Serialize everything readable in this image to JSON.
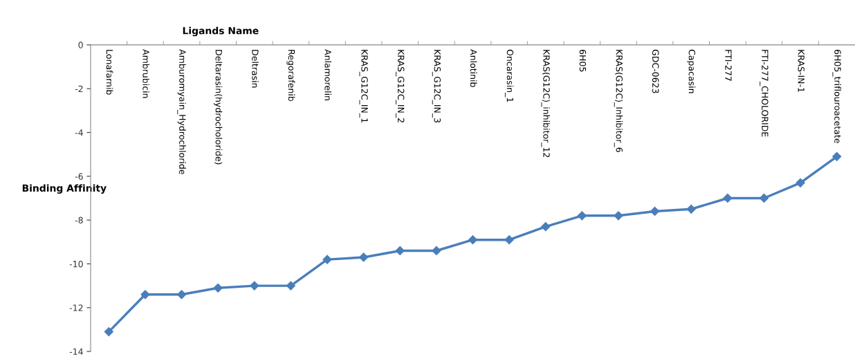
{
  "chart_data": {
    "type": "line",
    "xlabel": "Ligands Name",
    "ylabel": "Binding Affinity",
    "categories": [
      "Lonafarnib",
      "Ambrubicin",
      "Amburomyain_Hydrochloride",
      "Deltarasin(hydrocholoride)",
      "Deltrasin",
      "Regorafenib",
      "Anlamorelin",
      "KRAS_G12C_IN_1",
      "KRAS_G12C_IN_2",
      "KRAS_G12C_IN_3",
      "Anlotinib",
      "Oncarasin_1",
      "KRAS(G12C)_inhibitor_12",
      "6H05",
      "KRAS(G12C)_Inhibitor_6",
      "GDC-0623",
      "Capacasin",
      "FTI-277",
      "FTI-277_CHOLORIDE",
      "KRAS-IN-1",
      "6H05_triflouroacetate"
    ],
    "series": [
      {
        "color": "#4a7ebb",
        "values": [
          -13.1,
          -11.4,
          -11.4,
          -11.1,
          -11.0,
          -11.0,
          -9.8,
          -9.7,
          -9.4,
          -9.4,
          -8.9,
          -8.9,
          -8.3,
          -7.8,
          -7.8,
          -7.6,
          -7.5,
          -7.0,
          -7.0,
          -6.3,
          -5.1
        ]
      }
    ],
    "ylim": [
      -14,
      0
    ],
    "yticks": [
      -14,
      -12,
      -10,
      -8,
      -6,
      -4,
      -2,
      0
    ],
    "marker": "diamond",
    "line_style": "solid",
    "grid": false,
    "legend": false
  }
}
